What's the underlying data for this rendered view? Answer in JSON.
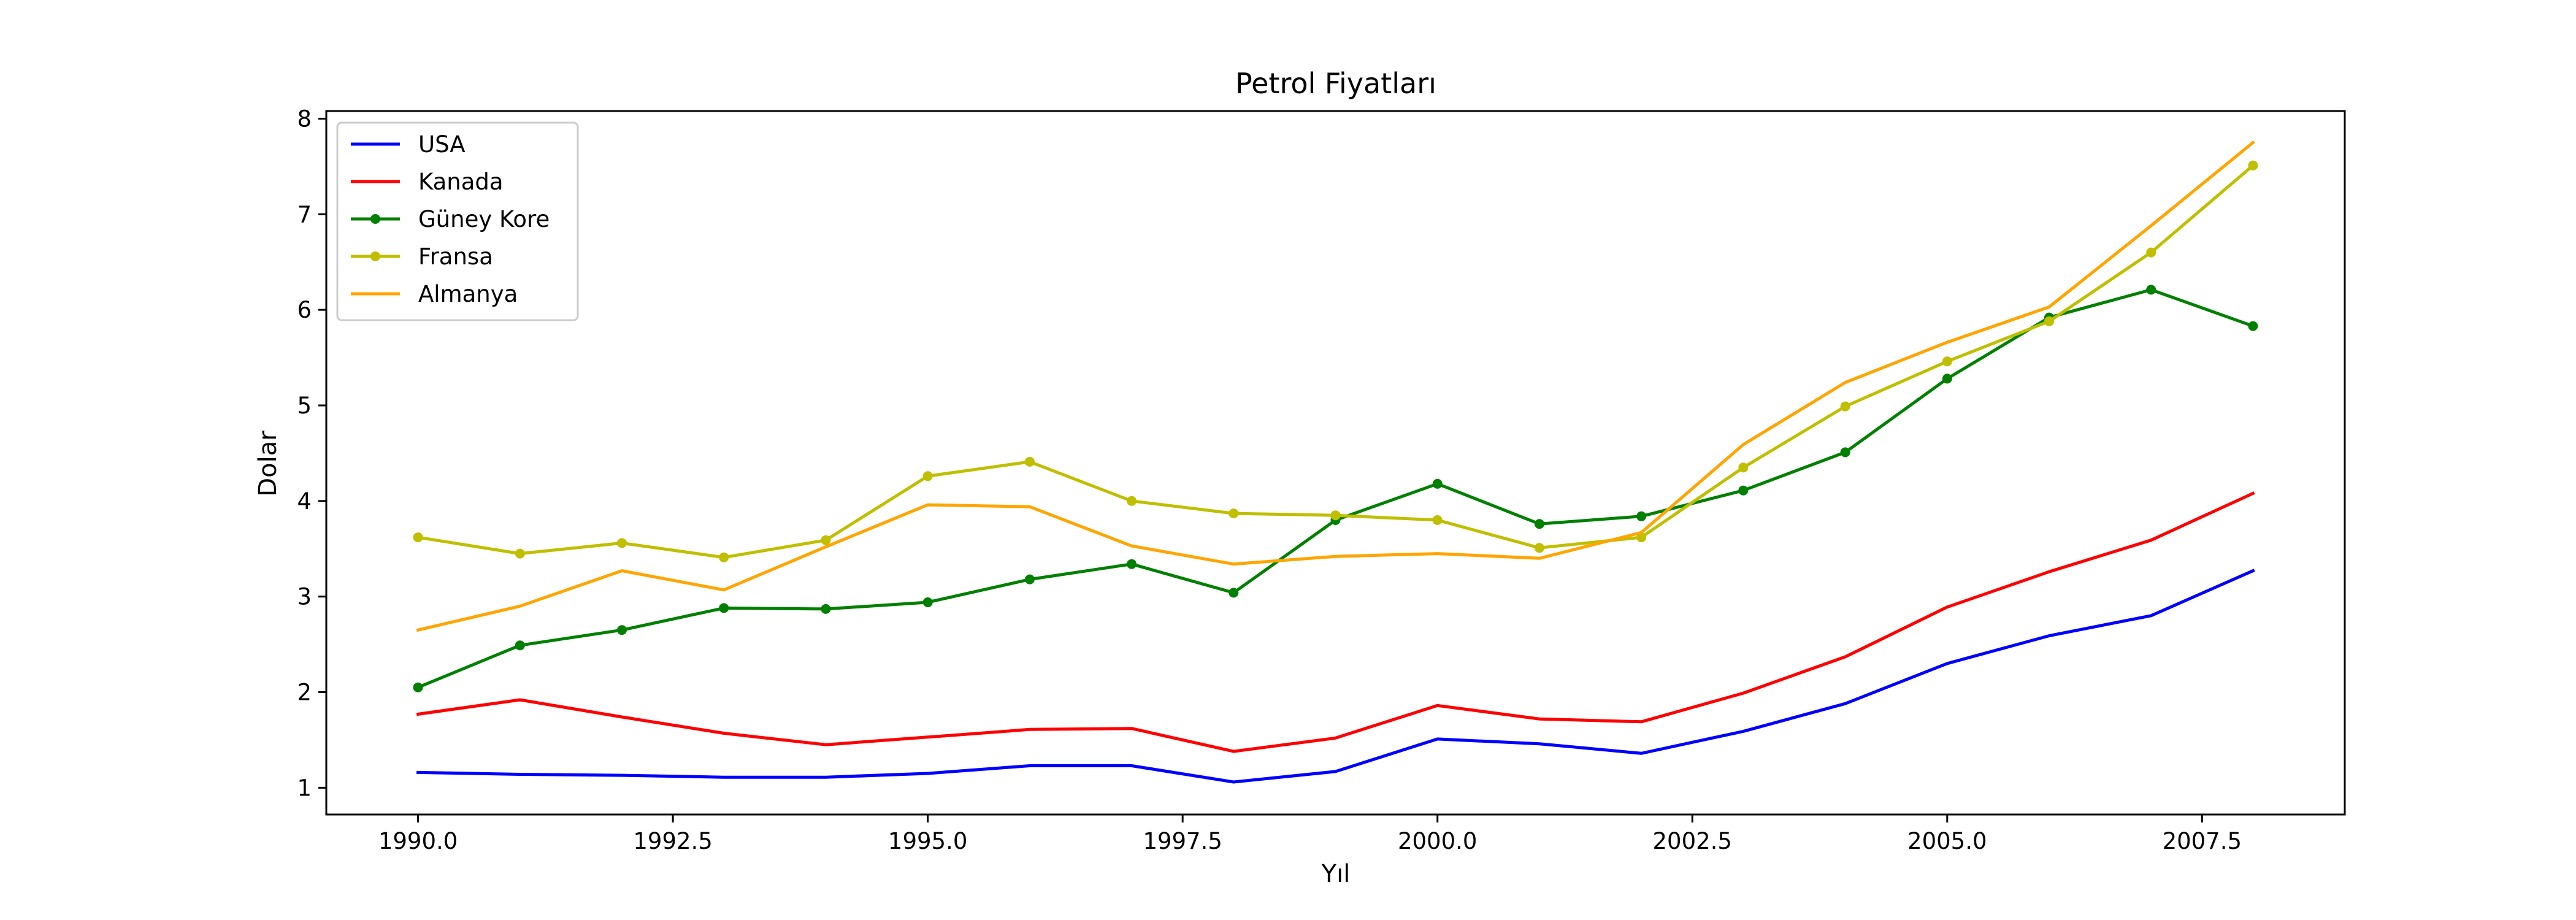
{
  "chart_data": {
    "type": "line",
    "title": "Petrol Fiyatları",
    "xlabel": "Yıl",
    "ylabel": "Dolar",
    "xlim": [
      1989.1,
      2008.9
    ],
    "ylim": [
      0.72,
      8.08
    ],
    "x_ticks": [
      1990.0,
      1992.5,
      1995.0,
      1997.5,
      2000.0,
      2002.5,
      2005.0,
      2007.5
    ],
    "x_tick_labels": [
      "1990.0",
      "1992.5",
      "1995.0",
      "1997.5",
      "2000.0",
      "2002.5",
      "2005.0",
      "2007.5"
    ],
    "y_ticks": [
      1,
      2,
      3,
      4,
      5,
      6,
      7,
      8
    ],
    "y_tick_labels": [
      "1",
      "2",
      "3",
      "4",
      "5",
      "6",
      "7",
      "8"
    ],
    "grid": false,
    "legend_position": "top-left",
    "x": [
      1990,
      1991,
      1992,
      1993,
      1994,
      1995,
      1996,
      1997,
      1998,
      1999,
      2000,
      2001,
      2002,
      2003,
      2004,
      2005,
      2006,
      2007,
      2008
    ],
    "series": [
      {
        "name": "USA",
        "color": "#0000ff",
        "markers": false,
        "values": [
          1.16,
          1.14,
          1.13,
          1.11,
          1.11,
          1.15,
          1.23,
          1.23,
          1.06,
          1.17,
          1.51,
          1.46,
          1.36,
          1.59,
          1.88,
          2.3,
          2.59,
          2.8,
          3.27
        ]
      },
      {
        "name": "Kanada",
        "color": "#ff0000",
        "markers": false,
        "values": [
          1.77,
          1.92,
          1.74,
          1.57,
          1.45,
          1.53,
          1.61,
          1.62,
          1.38,
          1.52,
          1.86,
          1.72,
          1.69,
          1.99,
          2.37,
          2.89,
          3.26,
          3.59,
          4.08
        ]
      },
      {
        "name": "Güney Kore",
        "color": "#008000",
        "markers": true,
        "values": [
          2.05,
          2.49,
          2.65,
          2.88,
          2.87,
          2.94,
          3.18,
          3.34,
          3.04,
          3.8,
          4.18,
          3.76,
          3.84,
          4.11,
          4.51,
          5.28,
          5.92,
          6.21,
          5.83
        ]
      },
      {
        "name": "Fransa",
        "color": "#bfbf00",
        "markers": true,
        "values": [
          3.62,
          3.45,
          3.56,
          3.41,
          3.59,
          4.26,
          4.41,
          4.0,
          3.87,
          3.85,
          3.8,
          3.51,
          3.62,
          4.35,
          4.99,
          5.46,
          5.88,
          6.6,
          7.51
        ]
      },
      {
        "name": "Almanya",
        "color": "#ffa500",
        "markers": false,
        "values": [
          2.65,
          2.9,
          3.27,
          3.07,
          3.52,
          3.96,
          3.94,
          3.53,
          3.34,
          3.42,
          3.45,
          3.4,
          3.67,
          4.59,
          5.24,
          5.66,
          6.03,
          6.88,
          7.75
        ]
      }
    ]
  }
}
